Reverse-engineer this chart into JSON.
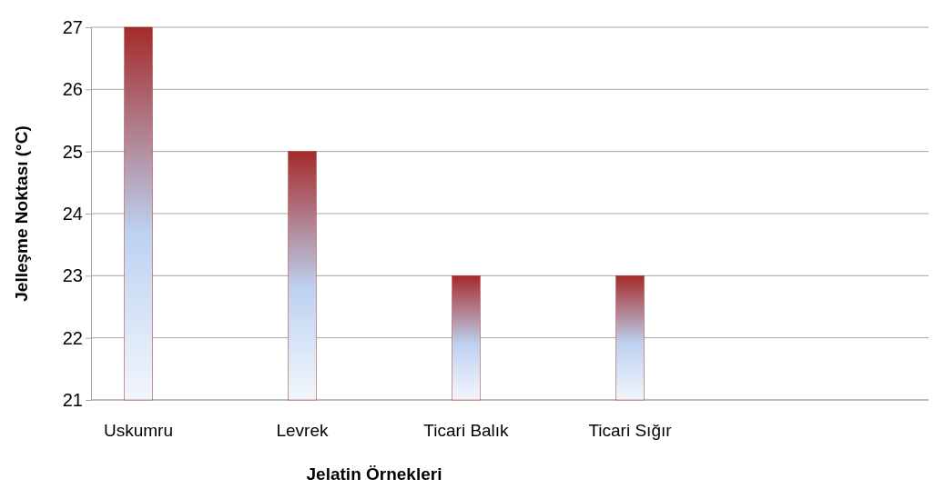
{
  "chart_data": {
    "type": "bar",
    "xlabel": "Jelatin Örnekleri",
    "ylabel": "Jelleşme Noktası (°C)",
    "categories": [
      "Uskumru",
      "Levrek",
      "Ticari Balık",
      "Ticari Sığır"
    ],
    "values": [
      27,
      25,
      23,
      23
    ],
    "color": "#a52a2a",
    "ylim": [
      21,
      27
    ],
    "yticks": [
      21,
      22,
      23,
      24,
      25,
      26,
      27
    ],
    "grid": "y"
  }
}
